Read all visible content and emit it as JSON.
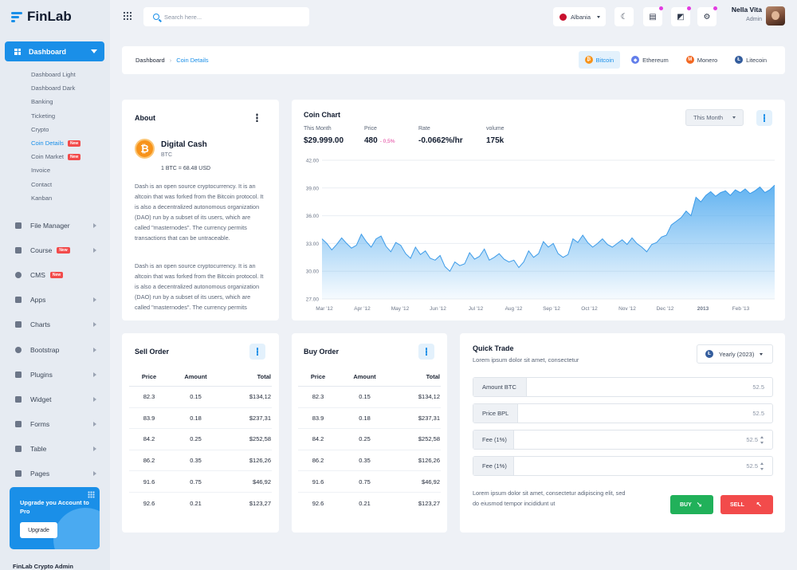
{
  "app": {
    "name": "FinLab",
    "footer": "FinLab Crypto Admin"
  },
  "sidebar": {
    "active": {
      "label": "Dashboard"
    },
    "subitems": [
      {
        "label": "Dashboard Light"
      },
      {
        "label": "Dashboard Dark"
      },
      {
        "label": "Banking"
      },
      {
        "label": "Ticketing"
      },
      {
        "label": "Crypto"
      },
      {
        "label": "Coin Details",
        "badge": "New",
        "active": true
      },
      {
        "label": "Coin Market",
        "badge": "New"
      },
      {
        "label": "Invoice"
      },
      {
        "label": "Contact"
      },
      {
        "label": "Kanban"
      }
    ],
    "items": [
      {
        "label": "File Manager",
        "icon": "folder-icon"
      },
      {
        "label": "Course",
        "icon": "book-icon",
        "badge": "New"
      },
      {
        "label": "CMS",
        "icon": "gear-icon",
        "badge": "New"
      },
      {
        "label": "Apps",
        "icon": "apps-icon"
      },
      {
        "label": "Charts",
        "icon": "chart-icon"
      },
      {
        "label": "Bootstrap",
        "icon": "heart-icon"
      },
      {
        "label": "Plugins",
        "icon": "puzzle-icon"
      },
      {
        "label": "Widget",
        "icon": "widget-icon"
      },
      {
        "label": "Forms",
        "icon": "form-icon"
      },
      {
        "label": "Table",
        "icon": "table-icon"
      },
      {
        "label": "Pages",
        "icon": "page-icon"
      }
    ],
    "upgrade": {
      "title": "Upgrade you Account to Pro",
      "button": "Upgrade"
    }
  },
  "topbar": {
    "search_placeholder": "Search here...",
    "language": "Albania",
    "user": {
      "name": "Nella Vita",
      "role": "Admin"
    }
  },
  "breadcrumb": {
    "root": "Dashboard",
    "current": "Coin Details"
  },
  "coin_tabs": [
    {
      "label": "Bitcoin",
      "symbol": "₿",
      "color": "#f7931a",
      "active": true
    },
    {
      "label": "Ethereum",
      "symbol": "◆",
      "color": "#627eea"
    },
    {
      "label": "Monero",
      "symbol": "M",
      "color": "#f26822"
    },
    {
      "label": "Litecoin",
      "symbol": "Ł",
      "color": "#345d9d"
    }
  ],
  "about": {
    "title": "About",
    "coin_name": "Digital Cash",
    "coin_symbol": "BTC",
    "rate": "1 BTC = 68.48 USD",
    "paragraphs": [
      "Dash is an open source cryptocurrency. It is an altcoin that was forked from the Bitcoin protocol. It is also a decentralized autonomous organization (DAO) run by a subset of its users, which are called \"masternodes\". The currency permits transactions that can be untraceable.",
      "Dash is an open source cryptocurrency. It is an altcoin that was forked from the Bitcoin protocol. It is also a decentralized autonomous organization (DAO) run by a subset of its users, which are called \"masternodes\". The currency permits"
    ]
  },
  "coin_chart": {
    "title": "Coin Chart",
    "range_select": "This Month",
    "stats": [
      {
        "label": "This Month",
        "value": "$29.999.00"
      },
      {
        "label": "Price",
        "value": "480",
        "change": "- 0,5%"
      },
      {
        "label": "Rate",
        "value": "-0.0662%/hr"
      },
      {
        "label": "volume",
        "value": "175k"
      }
    ]
  },
  "chart_data": {
    "type": "area",
    "title": "",
    "xlabel": "",
    "ylabel": "",
    "ylim": [
      27,
      42
    ],
    "yticks": [
      "42.00",
      "39.00",
      "36.00",
      "33.00",
      "30.00",
      "27.00"
    ],
    "xticks": [
      "Mar '12",
      "Apr '12",
      "May '12",
      "Jun '12",
      "Jul '12",
      "Aug '12",
      "Sep '12",
      "Oct '12",
      "Nov '12",
      "Dec '12",
      "2013",
      "Feb '13"
    ],
    "color": "#5aaff0",
    "series": [
      {
        "values": [
          33.5,
          33.0,
          32.3,
          32.9,
          33.6,
          33.0,
          32.5,
          32.8,
          34.0,
          33.2,
          32.6,
          33.5,
          33.8,
          32.7,
          32.1,
          33.1,
          32.8,
          31.9,
          31.4,
          32.6,
          31.8,
          32.2,
          31.4,
          31.2,
          31.7,
          30.5,
          30.0,
          31.0,
          30.6,
          30.8,
          32.0,
          31.3,
          31.6,
          32.4,
          31.2,
          31.5,
          31.9,
          31.3,
          31.0,
          31.2,
          30.4,
          31.0,
          32.2,
          31.5,
          31.9,
          33.2,
          32.6,
          33.0,
          31.9,
          31.5,
          31.8,
          33.5,
          33.1,
          33.9,
          33.1,
          32.6,
          33.0,
          33.5,
          32.9,
          32.6,
          33.0,
          33.4,
          32.9,
          33.6,
          33.0,
          32.6,
          32.1,
          32.9,
          33.1,
          33.7,
          33.9,
          35.0,
          35.4,
          35.8,
          36.5,
          36.0,
          38.0,
          37.5,
          38.2,
          38.6,
          38.1,
          38.5,
          38.7,
          38.2,
          38.8,
          38.5,
          38.9,
          38.4,
          38.7,
          39.1,
          38.5,
          38.8,
          39.3
        ]
      }
    ]
  },
  "sell_order": {
    "title": "Sell Order",
    "headers": [
      "Price",
      "Amount",
      "Total"
    ],
    "rows": [
      [
        "82.3",
        "0.15",
        "$134,12"
      ],
      [
        "83.9",
        "0.18",
        "$237,31"
      ],
      [
        "84.2",
        "0.25",
        "$252,58"
      ],
      [
        "86.2",
        "0.35",
        "$126,26"
      ],
      [
        "91.6",
        "0.75",
        "$46,92"
      ],
      [
        "92.6",
        "0.21",
        "$123,27"
      ]
    ]
  },
  "buy_order": {
    "title": "Buy Order",
    "headers": [
      "Price",
      "Amount",
      "Total"
    ],
    "rows": [
      [
        "82.3",
        "0.15",
        "$134,12"
      ],
      [
        "83.9",
        "0.18",
        "$237,31"
      ],
      [
        "84.2",
        "0.25",
        "$252,58"
      ],
      [
        "86.2",
        "0.35",
        "$126,26"
      ],
      [
        "91.6",
        "0.75",
        "$46,92"
      ],
      [
        "92.6",
        "0.21",
        "$123,27"
      ]
    ]
  },
  "quick_trade": {
    "title": "Quick Trade",
    "subtitle": "Lorem ipsum dolor sit amet, consectetur",
    "year_select": "Yearly (2023)",
    "fields": [
      {
        "label": "Amount BTC",
        "value": "52.5"
      },
      {
        "label": "Price BPL",
        "value": "52.5"
      },
      {
        "label": "Fee (1%)",
        "value": "52.5"
      },
      {
        "label": "Fee (1%)",
        "value": "52.5"
      }
    ],
    "note": "Lorem ipsum dolor sit amet, consectetur adipiscing elit, sed do eiusmod tempor incididunt ut",
    "buy_label": "BUY",
    "sell_label": "SELL",
    "buy_color": "#21b15a",
    "sell_color": "#f24b4b"
  }
}
